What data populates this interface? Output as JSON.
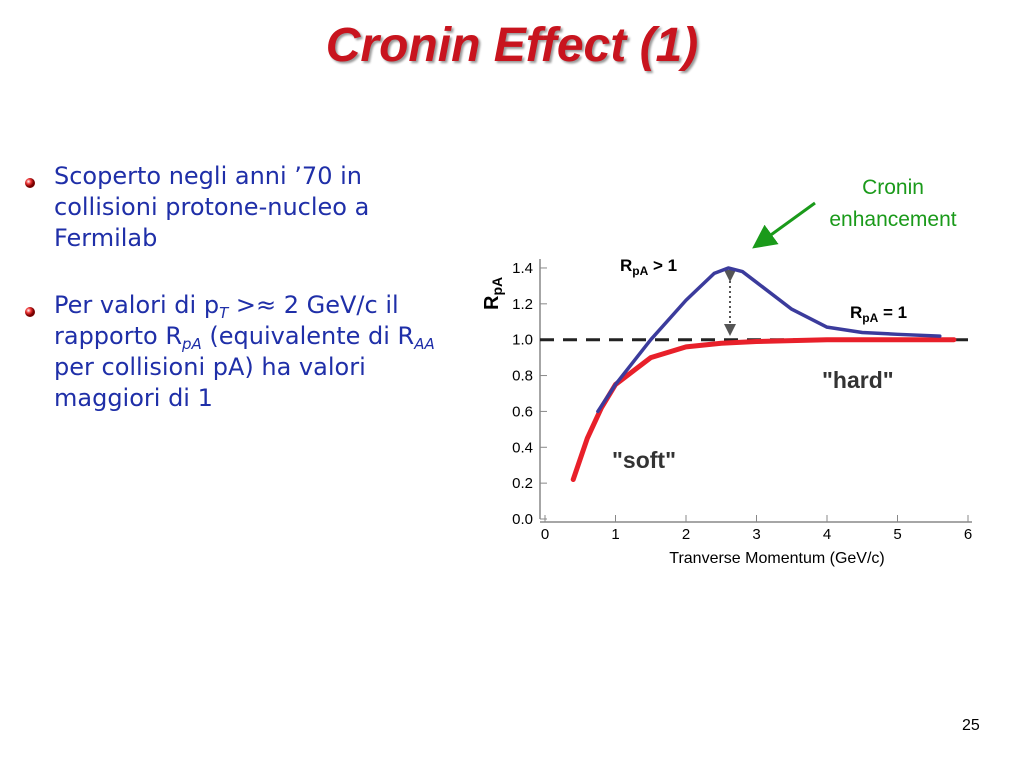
{
  "title": "Cronin Effect (1)",
  "bullets": [
    {
      "segments": [
        {
          "text": "Scoperto negli anni ’70 in collisioni protone-nucleo a Fermilab",
          "sub": false
        }
      ]
    },
    {
      "segments": [
        {
          "text": "Per valori di p",
          "sub": false
        },
        {
          "text": "T",
          "sub": true
        },
        {
          "text": " >≈ 2 GeV/c il rapporto R",
          "sub": false
        },
        {
          "text": "pA",
          "sub": true
        },
        {
          "text": " (equivalente di R",
          "sub": false
        },
        {
          "text": "AA",
          "sub": true
        },
        {
          "text": " per collisioni pA) ha valori maggiori di 1",
          "sub": false
        }
      ]
    }
  ],
  "page_number": "25",
  "chart_data": {
    "type": "line",
    "x_label": "Tranverse Momentum (GeV/c)",
    "y_label": {
      "base": "R",
      "sub": "pA"
    },
    "xlim": [
      0,
      6
    ],
    "xticks": [
      0,
      1,
      2,
      3,
      4,
      5,
      6
    ],
    "ylim": [
      0,
      1.45
    ],
    "yticks": [
      {
        "value": 0,
        "label": "0.0"
      },
      0.2,
      0.4,
      0.6,
      0.8,
      {
        "value": 1,
        "label": "1.0"
      },
      1.2,
      1.4
    ],
    "reference_line": 1,
    "series": [
      {
        "color": "#3b3b9c",
        "x": [
          0.75,
          1.0,
          1.5,
          2.0,
          2.4,
          2.6,
          2.8,
          3.0,
          3.5,
          4.0,
          4.5,
          5.0,
          5.6
        ],
        "values": [
          0.6,
          0.75,
          1.0,
          1.22,
          1.37,
          1.4,
          1.38,
          1.32,
          1.17,
          1.07,
          1.04,
          1.03,
          1.02
        ]
      },
      {
        "color": "#e8202a",
        "x": [
          0.4,
          0.6,
          0.8,
          1.0,
          1.5,
          2.0,
          2.5,
          3.0,
          4.0,
          5.0,
          5.8
        ],
        "values": [
          0.22,
          0.45,
          0.62,
          0.75,
          0.9,
          0.96,
          0.98,
          0.99,
          1.0,
          1.0,
          1.0
        ]
      }
    ],
    "annotations": [
      {
        "base": "R",
        "sub": "pA",
        "after": " > 1"
      },
      {
        "base": "R",
        "sub": "pA",
        "after": " = 1"
      }
    ],
    "cronin_label": [
      "Cronin",
      "enhancement"
    ],
    "hard_label": "\"hard\"",
    "soft_label": "\"soft\""
  }
}
